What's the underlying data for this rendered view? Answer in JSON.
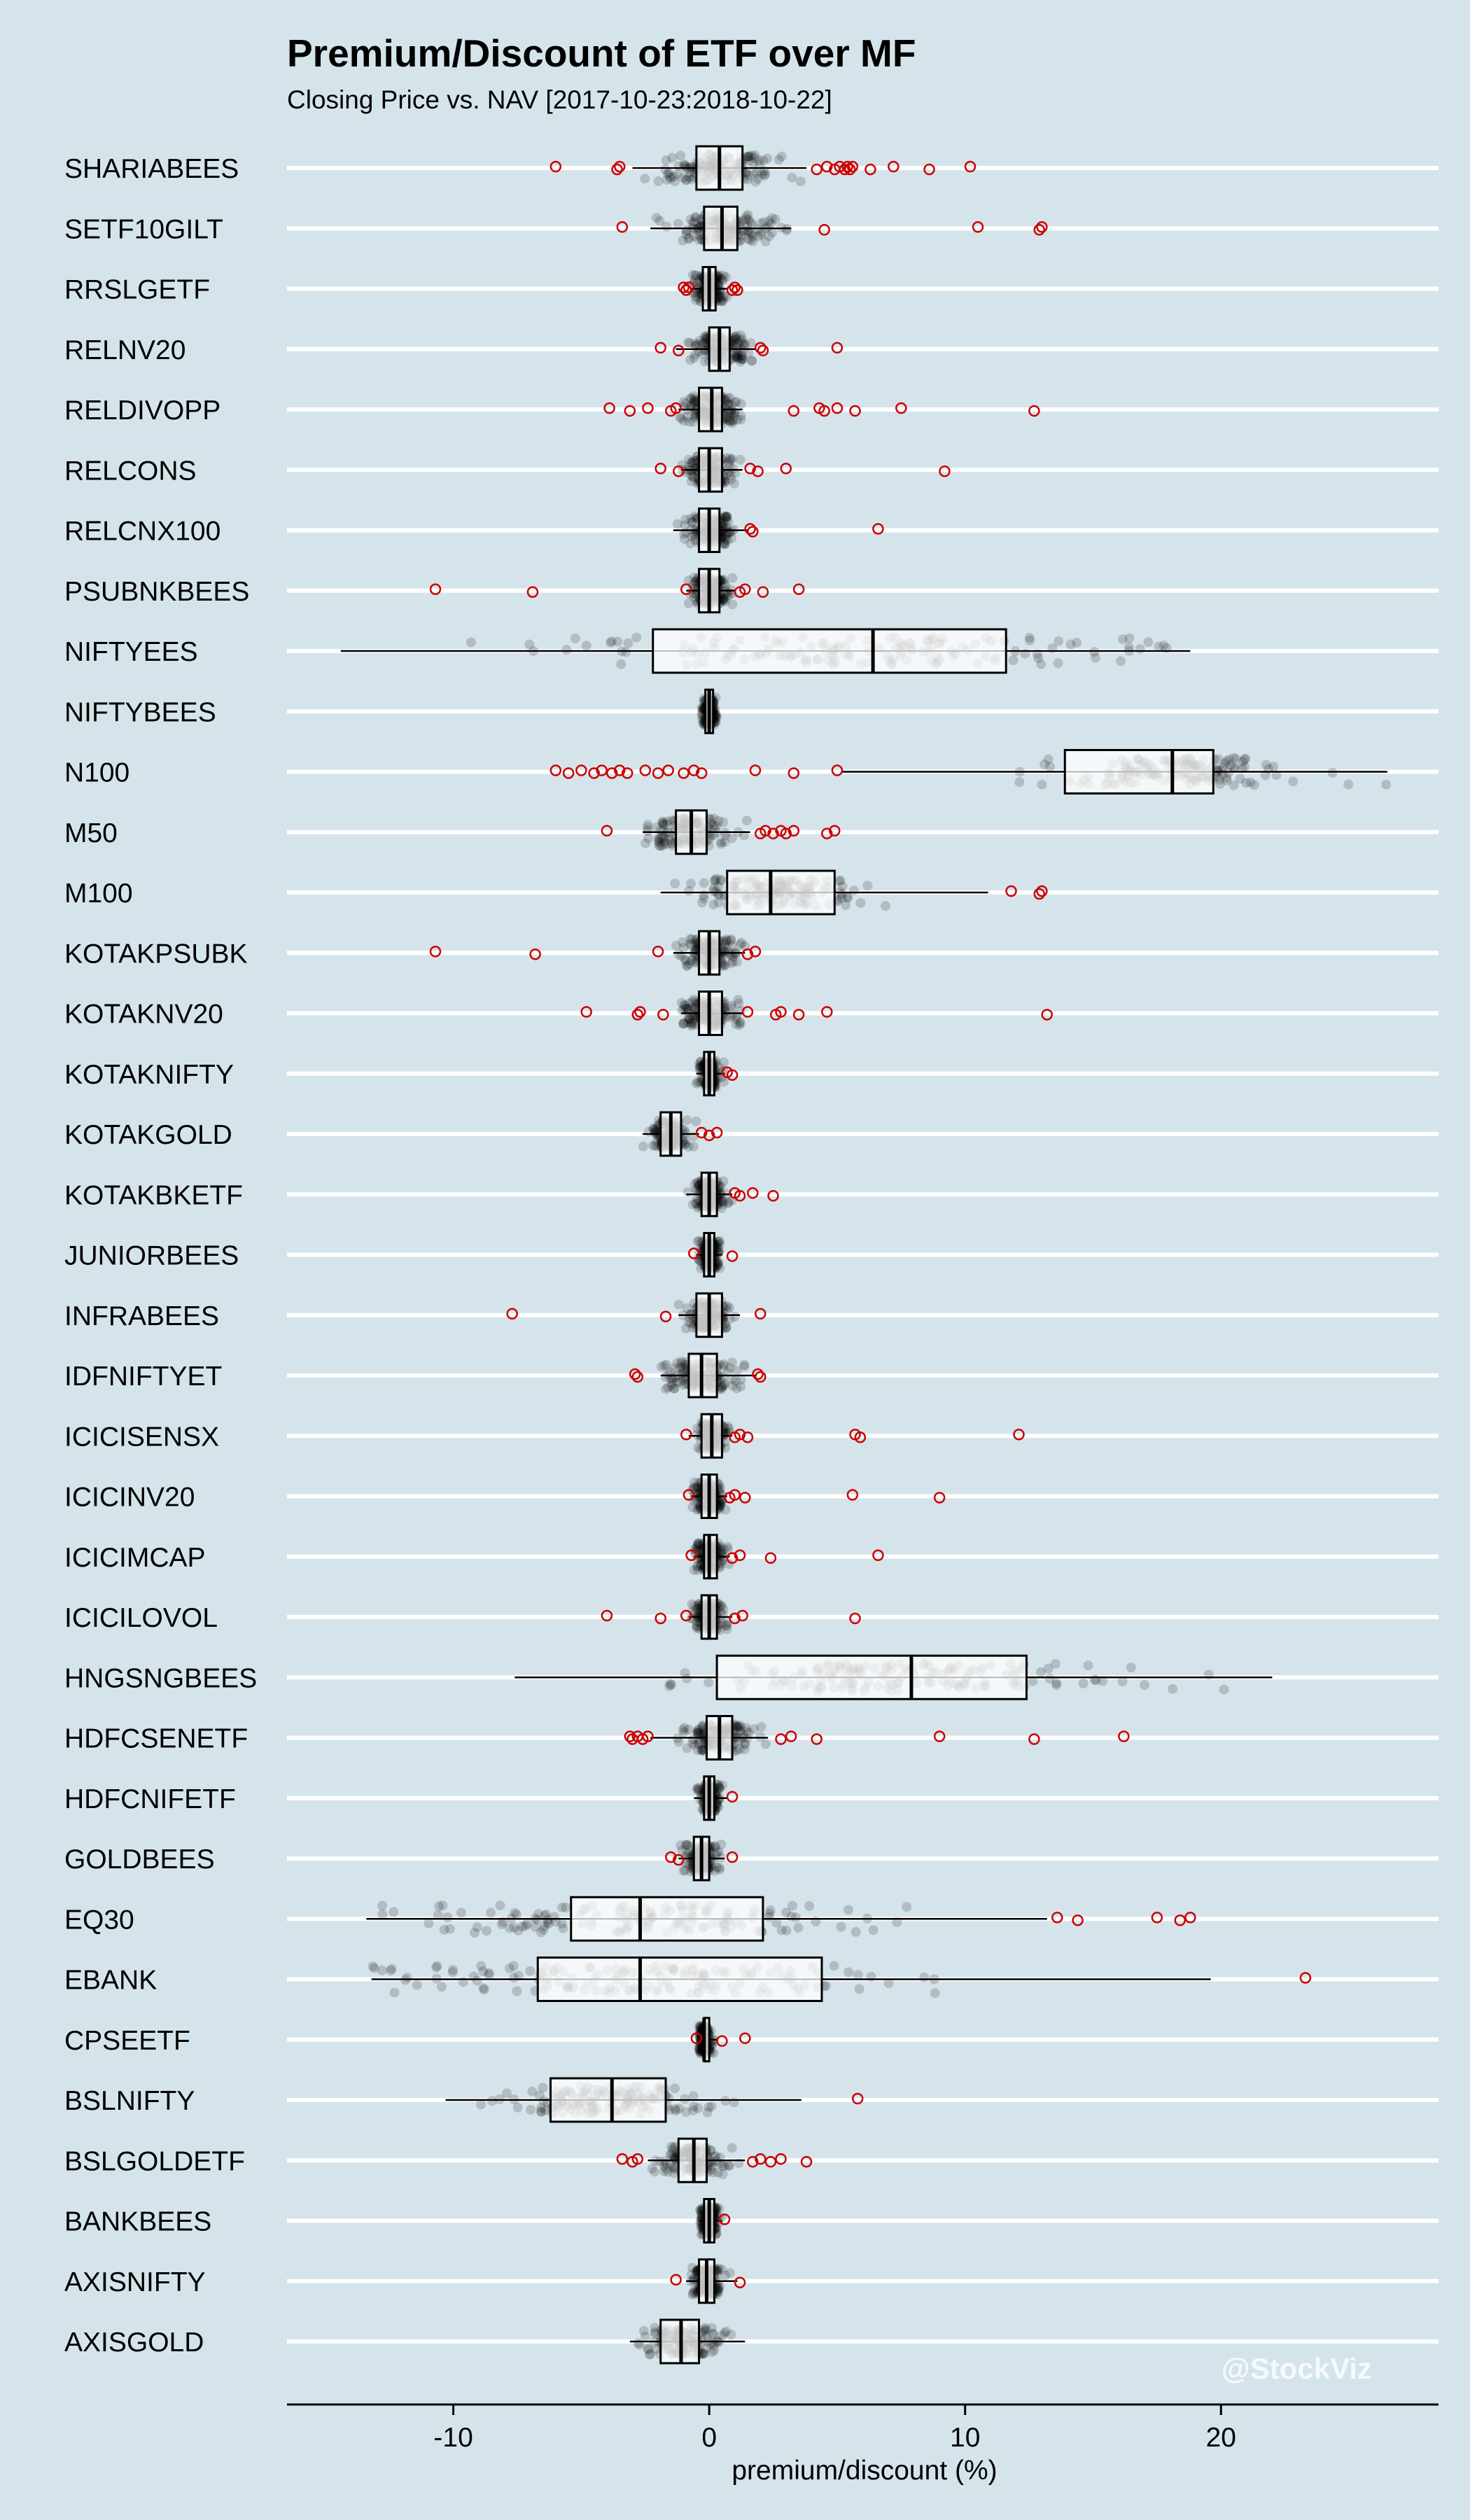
{
  "chart_data": {
    "type": "boxplot",
    "title": "Premium/Discount of ETF over MF",
    "subtitle": "Closing Price vs. NAV [2017-10-23:2018-10-22]",
    "xlabel": "premium/discount (%)",
    "ylabel": "",
    "xlim": [
      -16.5,
      28.5
    ],
    "x_ticks": [
      -10,
      0,
      10,
      20
    ],
    "x_tick_labels": [
      "-10",
      "0",
      "10",
      "20"
    ],
    "orientation": "horizontal",
    "grid": "horizontal lines",
    "watermark": "@StockViz",
    "colors": {
      "background": "#d5e4eb",
      "grid": "#ffffff",
      "box": "#000000",
      "box_fill": "#ffffff",
      "outlier": "#cc0000",
      "jitter": "#000000"
    },
    "series": [
      {
        "name": "SHARIABEES",
        "min": -3,
        "q1": -0.5,
        "median": 0.4,
        "q3": 1.3,
        "max": 3.8,
        "spread": 1.2,
        "outliers": [
          -6,
          -3.6,
          -3.5,
          4.2,
          4.6,
          4.9,
          5.1,
          5.3,
          5.4,
          5.5,
          5.6,
          6.3,
          7.2,
          8.6,
          10.2
        ]
      },
      {
        "name": "SETF10GILT",
        "min": -2.3,
        "q1": -0.2,
        "median": 0.5,
        "q3": 1.1,
        "max": 3.2,
        "spread": 1.0,
        "outliers": [
          -3.4,
          4.5,
          10.5,
          12.9,
          13
        ]
      },
      {
        "name": "RRSLGETF",
        "min": -0.7,
        "q1": -0.25,
        "median": 0.0,
        "q3": 0.25,
        "max": 0.7,
        "spread": 0.3,
        "outliers": [
          -1,
          -0.9,
          -0.8,
          0.9,
          1.0,
          1.1
        ]
      },
      {
        "name": "RELNV20",
        "min": -1.3,
        "q1": 0,
        "median": 0.4,
        "q3": 0.8,
        "max": 1.8,
        "spread": 0.6,
        "outliers": [
          -1.9,
          -1.2,
          2.0,
          2.1,
          5
        ]
      },
      {
        "name": "RELDIVOPP",
        "min": -1.2,
        "q1": -0.4,
        "median": 0.1,
        "q3": 0.5,
        "max": 1.3,
        "spread": 0.6,
        "outliers": [
          -3.9,
          -3.1,
          -2.4,
          -1.5,
          -1.3,
          3.3,
          4.3,
          4.5,
          5,
          5.7,
          7.5,
          12.7
        ]
      },
      {
        "name": "RELCONS",
        "min": -1.1,
        "q1": -0.4,
        "median": 0.0,
        "q3": 0.5,
        "max": 1.3,
        "spread": 0.5,
        "outliers": [
          -1.9,
          -1.2,
          1.6,
          1.9,
          3,
          9.2
        ]
      },
      {
        "name": "RELCNX100",
        "min": -1.4,
        "q1": -0.4,
        "median": 0.0,
        "q3": 0.4,
        "max": 1.5,
        "spread": 0.5,
        "outliers": [
          1.6,
          1.7,
          6.6
        ]
      },
      {
        "name": "PSUBNKBEES",
        "min": -0.9,
        "q1": -0.4,
        "median": 0.0,
        "q3": 0.4,
        "max": 1.0,
        "spread": 0.4,
        "outliers": [
          -10.7,
          -6.9,
          -0.9,
          1.2,
          1.4,
          2.1,
          3.5
        ]
      },
      {
        "name": "NIFTYEES",
        "min": -14.4,
        "q1": -2.2,
        "median": 6.4,
        "q3": 11.6,
        "max": 18.8,
        "spread": 6.0,
        "outliers": []
      },
      {
        "name": "NIFTYBEES",
        "min": -0.3,
        "q1": -0.15,
        "median": 0.0,
        "q3": 0.15,
        "max": 0.3,
        "spread": 0.15,
        "outliers": []
      },
      {
        "name": "N100",
        "min": 5.2,
        "q1": 13.9,
        "median": 18.1,
        "q3": 19.7,
        "max": 26.5,
        "spread": 2.5,
        "outliers": [
          -6,
          -5.5,
          -5,
          -4.5,
          -4.2,
          -3.8,
          -3.5,
          -3.2,
          -2.5,
          -2,
          -1.6,
          -1,
          -0.6,
          -0.3,
          1.8,
          3.3,
          5
        ]
      },
      {
        "name": "M50",
        "min": -2.6,
        "q1": -1.3,
        "median": -0.7,
        "q3": -0.1,
        "max": 1.6,
        "spread": 0.8,
        "outliers": [
          -4,
          2.0,
          2.2,
          2.5,
          2.8,
          3.0,
          3.3,
          4.6,
          4.9
        ]
      },
      {
        "name": "M100",
        "min": -1.9,
        "q1": 0.7,
        "median": 2.4,
        "q3": 4.9,
        "max": 10.9,
        "spread": 1.8,
        "outliers": [
          11.8,
          12.9,
          13
        ]
      },
      {
        "name": "KOTAKPSUBK",
        "min": -1.4,
        "q1": -0.4,
        "median": 0.0,
        "q3": 0.4,
        "max": 1.4,
        "spread": 0.5,
        "outliers": [
          -10.7,
          -6.8,
          -2,
          1.5,
          1.8
        ]
      },
      {
        "name": "KOTAKNV20",
        "min": -1.1,
        "q1": -0.4,
        "median": 0.0,
        "q3": 0.5,
        "max": 1.3,
        "spread": 0.6,
        "outliers": [
          -4.8,
          -2.8,
          -2.7,
          -1.8,
          1.5,
          2.6,
          2.8,
          3.5,
          4.6,
          13.2
        ]
      },
      {
        "name": "KOTAKNIFTY",
        "min": -0.5,
        "q1": -0.2,
        "median": 0.0,
        "q3": 0.2,
        "max": 0.6,
        "spread": 0.2,
        "outliers": [
          0.7,
          0.9
        ]
      },
      {
        "name": "KOTAKGOLD",
        "min": -2.6,
        "q1": -1.9,
        "median": -1.5,
        "q3": -1.1,
        "max": -0.4,
        "spread": 0.4,
        "outliers": [
          -0.3,
          0.0,
          0.3
        ]
      },
      {
        "name": "KOTAKBKETF",
        "min": -0.9,
        "q1": -0.3,
        "median": 0.0,
        "q3": 0.3,
        "max": 0.9,
        "spread": 0.3,
        "outliers": [
          1.0,
          1.2,
          1.7,
          2.5
        ]
      },
      {
        "name": "JUNIORBEES",
        "min": -0.5,
        "q1": -0.2,
        "median": 0.0,
        "q3": 0.2,
        "max": 0.5,
        "spread": 0.2,
        "outliers": [
          -0.6,
          0.9
        ]
      },
      {
        "name": "INFRABEES",
        "min": -1.2,
        "q1": -0.5,
        "median": 0.0,
        "q3": 0.5,
        "max": 1.2,
        "spread": 0.4,
        "outliers": [
          -7.7,
          -1.7,
          2
        ]
      },
      {
        "name": "IDFNIFTYET",
        "min": -1.9,
        "q1": -0.8,
        "median": -0.3,
        "q3": 0.3,
        "max": 1.8,
        "spread": 0.7,
        "outliers": [
          -2.9,
          -2.8,
          1.9,
          2.0
        ]
      },
      {
        "name": "ICICISENSX",
        "min": -0.8,
        "q1": -0.3,
        "median": 0.1,
        "q3": 0.5,
        "max": 0.9,
        "spread": 0.3,
        "outliers": [
          -0.9,
          1.0,
          1.2,
          1.5,
          5.7,
          5.9,
          12.1
        ]
      },
      {
        "name": "ICICINV20",
        "min": -0.7,
        "q1": -0.3,
        "median": 0.0,
        "q3": 0.3,
        "max": 0.7,
        "spread": 0.3,
        "outliers": [
          -0.8,
          0.8,
          1.0,
          1.4,
          5.6,
          9
        ]
      },
      {
        "name": "ICICIMCAP",
        "min": -0.6,
        "q1": -0.2,
        "median": 0.0,
        "q3": 0.3,
        "max": 0.8,
        "spread": 0.3,
        "outliers": [
          -0.7,
          0.9,
          1.2,
          2.4,
          6.6
        ]
      },
      {
        "name": "ICICILOVOL",
        "min": -0.8,
        "q1": -0.3,
        "median": 0.0,
        "q3": 0.3,
        "max": 0.9,
        "spread": 0.3,
        "outliers": [
          -4,
          -1.9,
          -0.9,
          1.0,
          1.3,
          5.7
        ]
      },
      {
        "name": "HNGSNGBEES",
        "min": -7.6,
        "q1": 0.3,
        "median": 7.9,
        "q3": 12.4,
        "max": 22,
        "spread": 4.5,
        "outliers": []
      },
      {
        "name": "HDFCSENETF",
        "min": -2.3,
        "q1": -0.1,
        "median": 0.4,
        "q3": 0.9,
        "max": 2.3,
        "spread": 0.6,
        "outliers": [
          -3.1,
          -3.0,
          -2.8,
          -2.6,
          -2.4,
          2.8,
          3.2,
          4.2,
          9,
          12.7,
          16.2
        ]
      },
      {
        "name": "HDFCNIFETF",
        "min": -0.6,
        "q1": -0.2,
        "median": 0.0,
        "q3": 0.2,
        "max": 0.7,
        "spread": 0.2,
        "outliers": [
          0.9
        ]
      },
      {
        "name": "GOLDBEES",
        "min": -1.2,
        "q1": -0.6,
        "median": -0.3,
        "q3": 0.0,
        "max": 0.6,
        "spread": 0.3,
        "outliers": [
          -1.5,
          -1.2,
          0.9
        ]
      },
      {
        "name": "EQ30",
        "min": -13.4,
        "q1": -5.4,
        "median": -2.7,
        "q3": 2.1,
        "max": 13.2,
        "spread": 4.5,
        "outliers": [
          13.6,
          14.4,
          17.5,
          18.4,
          18.8
        ]
      },
      {
        "name": "EBANK",
        "min": -13.2,
        "q1": -6.7,
        "median": -2.7,
        "q3": 4.4,
        "max": 19.6,
        "spread": 5.0,
        "outliers": [
          23.3
        ]
      },
      {
        "name": "CPSEETF",
        "min": -0.4,
        "q1": -0.2,
        "median": -0.2,
        "q3": 0.0,
        "max": 0.3,
        "spread": 0.15,
        "outliers": [
          -0.5,
          0.5,
          1.4
        ]
      },
      {
        "name": "BSLNIFTY",
        "min": -10.3,
        "q1": -6.2,
        "median": -3.8,
        "q3": -1.7,
        "max": 3.6,
        "spread": 2.0,
        "outliers": [
          5.8
        ]
      },
      {
        "name": "BSLGOLDETF",
        "min": -2.4,
        "q1": -1.2,
        "median": -0.6,
        "q3": -0.1,
        "max": 1.4,
        "spread": 0.6,
        "outliers": [
          -3.4,
          -3.0,
          -2.8,
          1.7,
          2.0,
          2.4,
          2.8,
          3.8
        ]
      },
      {
        "name": "BANKBEES",
        "min": -0.4,
        "q1": -0.2,
        "median": 0.0,
        "q3": 0.2,
        "max": 0.5,
        "spread": 0.2,
        "outliers": [
          0.6
        ]
      },
      {
        "name": "AXISNIFTY",
        "min": -0.9,
        "q1": -0.4,
        "median": -0.1,
        "q3": 0.2,
        "max": 1.1,
        "spread": 0.3,
        "outliers": [
          -1.3,
          1.2
        ]
      },
      {
        "name": "AXISGOLD",
        "min": -3.1,
        "q1": -1.9,
        "median": -1.1,
        "q3": -0.4,
        "max": 1.4,
        "spread": 0.7,
        "outliers": []
      }
    ]
  }
}
